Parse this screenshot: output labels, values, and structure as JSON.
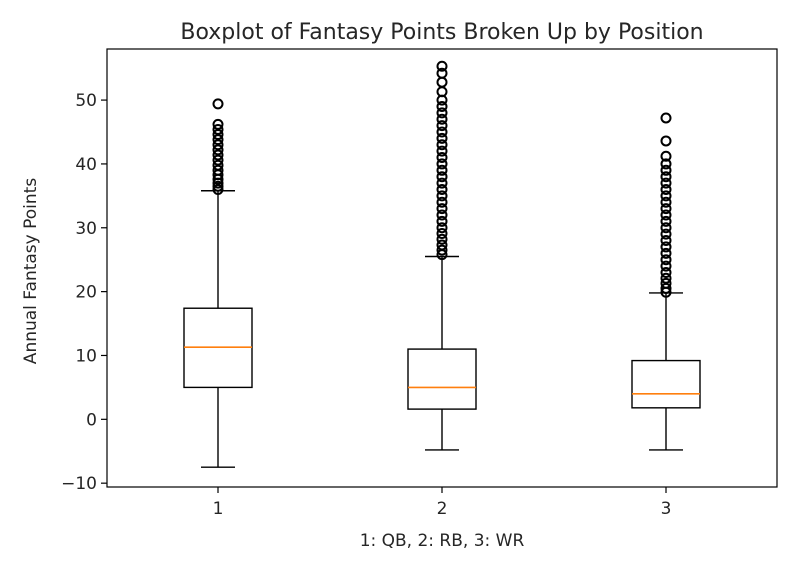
{
  "chart_data": {
    "type": "boxplot",
    "title": "Boxplot of Fantasy Points Broken Up by Position",
    "xlabel": "1: QB, 2: RB, 3: WR",
    "ylabel": "Annual Fantasy Points",
    "ylim": [
      -10.6,
      58.0
    ],
    "y_ticks": [
      -10,
      0,
      10,
      20,
      30,
      40,
      50
    ],
    "grid": false,
    "categories": [
      "1",
      "2",
      "3"
    ],
    "boxes": [
      {
        "category": "1",
        "whisker_low": -7.5,
        "q1": 5.0,
        "median": 11.3,
        "q3": 17.4,
        "whisker_high": 35.8,
        "outliers": [
          36.0,
          36.5,
          37.0,
          37.6,
          38.3,
          39.0,
          39.8,
          40.6,
          41.4,
          42.2,
          43.0,
          43.8,
          44.6,
          45.4,
          46.2,
          49.4
        ]
      },
      {
        "category": "2",
        "whisker_low": -4.8,
        "q1": 1.6,
        "median": 5.0,
        "q3": 11.0,
        "whisker_high": 25.5,
        "outliers": [
          25.8,
          26.5,
          27.3,
          28.2,
          29.1,
          30.0,
          31.0,
          32.0,
          33.0,
          34.0,
          35.0,
          36.0,
          37.0,
          38.0,
          39.0,
          40.0,
          41.0,
          42.0,
          43.0,
          44.0,
          45.0,
          46.0,
          47.0,
          48.0,
          49.0,
          50.0,
          51.3,
          52.8,
          54.2,
          55.3
        ]
      },
      {
        "category": "3",
        "whisker_low": -4.8,
        "q1": 1.8,
        "median": 4.0,
        "q3": 9.2,
        "whisker_high": 19.8,
        "outliers": [
          19.9,
          20.5,
          21.3,
          22.1,
          23.0,
          24.0,
          25.0,
          26.0,
          27.0,
          28.0,
          29.0,
          30.0,
          31.0,
          32.0,
          33.0,
          34.0,
          35.0,
          36.0,
          37.0,
          38.0,
          39.0,
          40.0,
          41.2,
          43.6,
          47.2
        ]
      }
    ],
    "colors": {
      "box": "#000000",
      "median": "#ff7f0e",
      "outlier": "#000000"
    }
  }
}
